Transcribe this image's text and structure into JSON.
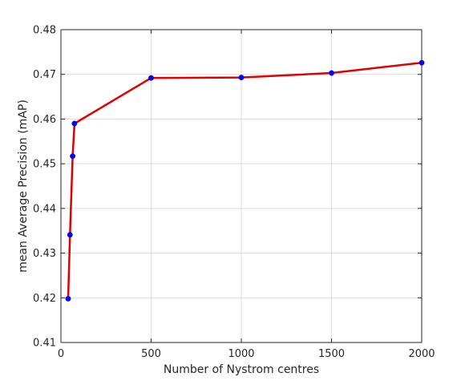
{
  "chart_data": {
    "type": "line",
    "title": "",
    "xlabel": "Number of Nystrom centres",
    "ylabel": "mean Average Precision (mAP)",
    "xlim": [
      0,
      2000
    ],
    "ylim": [
      0.41,
      0.48
    ],
    "xticks": [
      0,
      500,
      1000,
      1500,
      2000
    ],
    "yticks": [
      0.41,
      0.42,
      0.43,
      0.44,
      0.45,
      0.46,
      0.47,
      0.48
    ],
    "xtick_labels": [
      "0",
      "500",
      "1000",
      "1500",
      "2000"
    ],
    "ytick_labels": [
      "0.41",
      "0.42",
      "0.43",
      "0.44",
      "0.45",
      "0.46",
      "0.47",
      "0.48"
    ],
    "grid": true,
    "series": [
      {
        "x": [
          40,
          50,
          65,
          75,
          500,
          1000,
          1500,
          2000
        ],
        "y": [
          0.4198,
          0.4341,
          0.4517,
          0.459,
          0.4692,
          0.4693,
          0.4703,
          0.4726
        ],
        "line_color": "#e00000",
        "marker_color": "#0000ff"
      }
    ]
  }
}
